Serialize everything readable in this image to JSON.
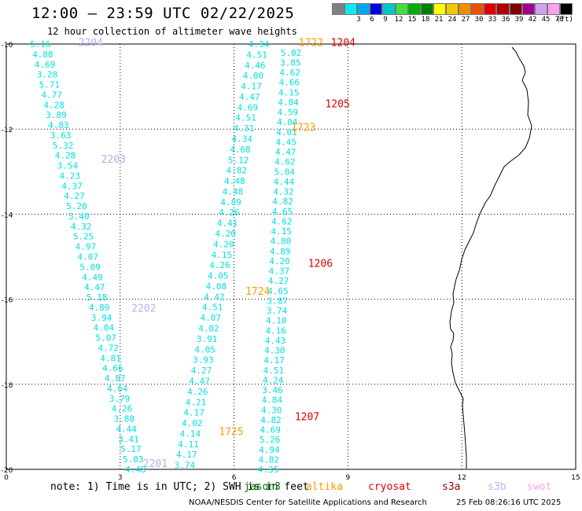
{
  "header": {
    "title": "12:00 – 23:59 UTC 02/22/2025",
    "subtitle": "12 hour collection of altimeter wave heights"
  },
  "legend": {
    "colors": [
      "#808080",
      "#00eeee",
      "#00a8f0",
      "#0000e0",
      "#00c8c8",
      "#40e040",
      "#00b000",
      "#008000",
      "#ffff00",
      "#f0c800",
      "#f09000",
      "#f05000",
      "#e00000",
      "#b40000",
      "#800000",
      "#a00090",
      "#d2a0f0",
      "#ffa0f0",
      "#000000"
    ],
    "labels": [
      "3",
      "6",
      "9",
      "12",
      "15",
      "18",
      "21",
      "24",
      "27",
      "30",
      "33",
      "36",
      "39",
      "42",
      "45",
      "70"
    ],
    "unit": "(ft)"
  },
  "map": {
    "x_ticks": [
      "0",
      "3",
      "6",
      "9",
      "12",
      "15"
    ],
    "y_ticks": [
      "-10",
      "-12",
      "-14",
      "-16",
      "-18",
      "-20"
    ],
    "text_color": "#00e0e0",
    "passes": [
      {
        "id": "2204",
        "color": "#b0b0f0",
        "label_lon": 1.9,
        "label_lat": -9.95,
        "track": {
          "lon0": 0.9,
          "lat0": -10.0,
          "lon1": 3.4,
          "lat1": -20.0
        },
        "values": [
          "5.16",
          "4.88",
          "4.69",
          "3.28",
          "5.71",
          "4.77",
          "4.28",
          "3.89",
          "4.83",
          "3.63",
          "5.32",
          "4.28",
          "3.54",
          "4.23",
          "4.37",
          "4.27",
          "5.20",
          "5.40",
          "4.32",
          "5.25",
          "4.97",
          "4.07",
          "5.09",
          "4.49",
          "4.47",
          "5.18",
          "4.89",
          "3.94",
          "4.04",
          "5.07",
          "4.72",
          "4.81",
          "4.66",
          "4.87",
          "4.64",
          "3.79",
          "4.26",
          "3.88",
          "4.44",
          "3.41",
          "5.17",
          "5.03",
          "4.48"
        ]
      },
      {
        "id": "2203",
        "color": "#b0b0f0",
        "label_lon": 2.5,
        "label_lat": -12.7
      },
      {
        "id": "2202",
        "color": "#b0b0f0",
        "label_lon": 3.3,
        "label_lat": -16.2
      },
      {
        "id": "2201",
        "color": "#b0b0f0",
        "label_lon": 3.6,
        "label_lat": -19.85
      },
      {
        "id": "1725",
        "color": "#ff9900",
        "label_lon": 5.6,
        "label_lat": -19.1,
        "track": {
          "lon0": 4.7,
          "lat0": -19.9,
          "lon1": 6.65,
          "lat1": -10.0
        },
        "values": [
          "3.74",
          "4.17",
          "4.11",
          "4.14",
          "4.02",
          "4.17",
          "4.21",
          "4.26",
          "4.47",
          "4.27",
          "3.93",
          "4.05",
          "3.91",
          "4.02",
          "4.07",
          "4.51",
          "4.42",
          "4.08",
          "4.05",
          "4.26",
          "4.15",
          "4.20",
          "4.20",
          "4.41",
          "4.26",
          "4.89",
          "4.48",
          "4.48",
          "4.82",
          "5.12",
          "4.68",
          "4.34",
          "4.31",
          "4.51",
          "4.69",
          "4.47",
          "4.17",
          "4.00",
          "4.46",
          "4.51",
          "4.34"
        ]
      },
      {
        "id": "1724",
        "color": "#ff9900",
        "label_lon": 6.3,
        "label_lat": -15.8
      },
      {
        "id": "1723",
        "color": "#ff9900",
        "label_lon": 7.5,
        "label_lat": -11.95
      },
      {
        "id": "1722",
        "color": "#ff9900",
        "label_lon": 7.7,
        "label_lat": -9.95
      },
      {
        "id": "1204",
        "color": "#e00000",
        "label_lon": 8.55,
        "label_lat": -9.95,
        "track": {
          "lon0": 7.5,
          "lat0": -10.2,
          "lon1": 6.9,
          "lat1": -20.0
        },
        "values": [
          "5.02",
          "3.85",
          "4.62",
          "4.66",
          "4.15",
          "4.84",
          "4.59",
          "4.04",
          "4.01",
          "4.45",
          "4.47",
          "4.62",
          "5.04",
          "4.44",
          "4.32",
          "4.82",
          "4.65",
          "4.62",
          "4.15",
          "4.80",
          "4.89",
          "4.20",
          "4.37",
          "4.27",
          "4.65",
          "3.87",
          "3.74",
          "4.10",
          "4.16",
          "4.43",
          "4.30",
          "4.17",
          "4.51",
          "4.24",
          "3.46",
          "4.84",
          "4.30",
          "4.82",
          "4.69",
          "5.26",
          "4.94",
          "4.82",
          "4.35"
        ]
      },
      {
        "id": "1205",
        "color": "#e00000",
        "label_lon": 8.4,
        "label_lat": -11.4
      },
      {
        "id": "1206",
        "color": "#e00000",
        "label_lon": 7.95,
        "label_lat": -15.15
      },
      {
        "id": "1207",
        "color": "#e00000",
        "label_lon": 7.6,
        "label_lat": -18.75
      }
    ]
  },
  "footer": {
    "note": "note: 1) Time is in UTC; 2) SWH is in feet",
    "satellites": [
      {
        "name": "jason3",
        "color": "#008000",
        "pos": 310
      },
      {
        "name": "altika",
        "color": "#ff9900",
        "pos": 389
      },
      {
        "name": "cryosat",
        "color": "#e00000",
        "pos": 468
      },
      {
        "name": "s3a",
        "color": "#a00000",
        "pos": 562
      },
      {
        "name": "s3b",
        "color": "#c0b0f0",
        "pos": 620
      },
      {
        "name": "swot",
        "color": "#ffa0f0",
        "pos": 670
      }
    ],
    "credit": "NOAA/NESDIS Center for Satellite Applications and Research",
    "timestamp": "25 Feb 08:26:16 UTC 2025"
  }
}
